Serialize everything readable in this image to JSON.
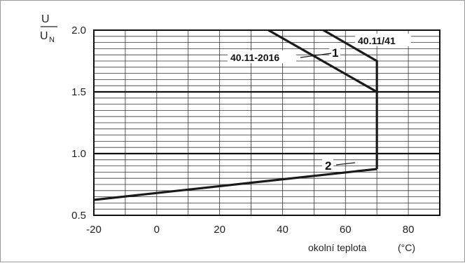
{
  "chart_data": {
    "type": "line",
    "ylabel_numerator": "U",
    "ylabel_denominator": "U",
    "ylabel_denominator_sub": "N",
    "xlabel": "okolní teplota",
    "xunit": "(°C)",
    "xlim": [
      -20,
      90
    ],
    "ylim": [
      0.5,
      2.0
    ],
    "x_ticks": [
      -20,
      0,
      20,
      40,
      60,
      80
    ],
    "x_tick_labels": [
      "-20",
      "0",
      "20",
      "40",
      "60",
      "80"
    ],
    "y_ticks": [
      0.5,
      1.0,
      1.5,
      2.0
    ],
    "y_tick_labels": [
      "0.5",
      "1.0",
      "1.5",
      "2.0"
    ],
    "grid": true,
    "series": [
      {
        "name": "40.11-2016",
        "x": [
          35.5,
          70,
          70
        ],
        "y": [
          2.0,
          1.5,
          0.875
        ]
      },
      {
        "name": "40.11/41",
        "x": [
          53,
          70,
          70
        ],
        "y": [
          2.0,
          1.75,
          1.5
        ]
      },
      {
        "name": "2",
        "x": [
          -20,
          70
        ],
        "y": [
          0.625,
          0.875
        ]
      }
    ],
    "annotations": [
      {
        "text": "40.11-2016"
      },
      {
        "text": "40.11/41"
      },
      {
        "text": "1"
      },
      {
        "text": "2"
      }
    ]
  }
}
